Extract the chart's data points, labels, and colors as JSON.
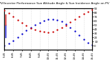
{
  "title": "Solar PV/Inverter Performance Sun Altitude Angle & Sun Incidence Angle on PV Panels",
  "background_color": "#ffffff",
  "grid_color": "#c0c0c0",
  "blue_color": "#0000cc",
  "red_color": "#cc0000",
  "ylim_left": [
    -10,
    90
  ],
  "ylim_right": [
    -10,
    90
  ],
  "xlim": [
    0.0,
    1.0
  ],
  "x_ticks": [
    0.0,
    0.1,
    0.2,
    0.3,
    0.4,
    0.5,
    0.6,
    0.7,
    0.8,
    0.9,
    1.0
  ],
  "x_ticklabels": [
    "5:45",
    "6:45",
    "7:45",
    "8:45",
    "9:45",
    "10:45",
    "11:45",
    "12:45",
    "13:45",
    "14:45",
    "15:45"
  ],
  "y_right_ticks": [
    0,
    10,
    20,
    30,
    40,
    50,
    60,
    70,
    80,
    90
  ],
  "sun_altitude_x": [
    0.0,
    0.05,
    0.1,
    0.15,
    0.2,
    0.25,
    0.3,
    0.35,
    0.4,
    0.45,
    0.5,
    0.55,
    0.6,
    0.65,
    0.7,
    0.75,
    0.8,
    0.85,
    0.9,
    0.95,
    1.0
  ],
  "sun_altitude_y": [
    0,
    5,
    12,
    20,
    28,
    36,
    43,
    50,
    55,
    60,
    63,
    64,
    62,
    58,
    52,
    44,
    35,
    25,
    15,
    7,
    1
  ],
  "incidence_x": [
    0.0,
    0.05,
    0.1,
    0.15,
    0.2,
    0.25,
    0.3,
    0.35,
    0.4,
    0.45,
    0.5,
    0.55,
    0.6,
    0.65,
    0.7,
    0.75,
    0.8,
    0.85,
    0.9,
    0.95,
    1.0
  ],
  "incidence_y": [
    85,
    78,
    70,
    62,
    55,
    48,
    42,
    38,
    35,
    33,
    32,
    34,
    38,
    43,
    49,
    56,
    63,
    70,
    76,
    82,
    87
  ],
  "marker_size": 1.5,
  "title_fontsize": 3.2,
  "tick_fontsize": 2.8,
  "vline_blue_x": 0.015,
  "vline_blue_y1": 20,
  "vline_blue_y2": 50,
  "vline_red_x": 0.015,
  "vline_red_y1": 50,
  "vline_red_y2": 75
}
